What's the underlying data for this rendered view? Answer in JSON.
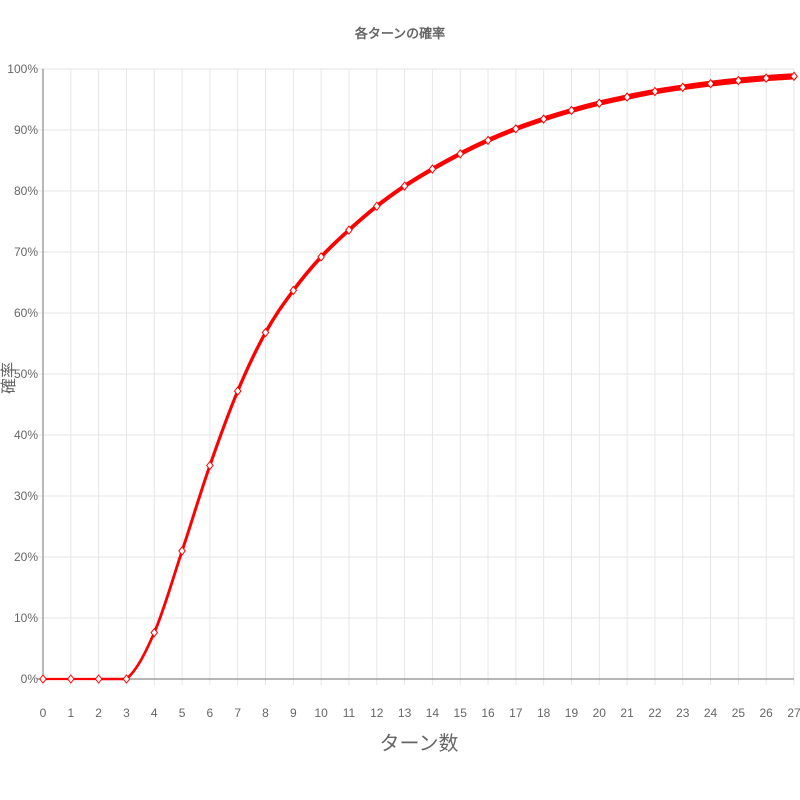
{
  "chart_data": {
    "type": "line",
    "title": "各ターンの確率",
    "xlabel": "ターン数",
    "ylabel": "確率",
    "x": [
      0,
      1,
      2,
      3,
      4,
      5,
      6,
      7,
      8,
      9,
      10,
      11,
      12,
      13,
      14,
      15,
      16,
      17,
      18,
      19,
      20,
      21,
      22,
      23,
      24,
      25,
      26,
      27
    ],
    "xlim": [
      0,
      27
    ],
    "ylim": [
      0,
      100
    ],
    "yticks": [
      "0%",
      "10%",
      "20%",
      "30%",
      "40%",
      "50%",
      "60%",
      "70%",
      "80%",
      "90%",
      "100%"
    ],
    "grid": true,
    "legend": "none",
    "series": [
      {
        "color": "#ff0000",
        "marker": "diamond",
        "values": [
          0,
          0,
          0,
          0,
          7.6,
          21.0,
          35.0,
          47.2,
          56.8,
          63.7,
          69.2,
          73.6,
          77.5,
          80.8,
          83.6,
          86.1,
          88.3,
          90.2,
          91.8,
          93.2,
          94.4,
          95.4,
          96.3,
          97.0,
          97.6,
          98.1,
          98.5,
          98.8
        ]
      }
    ]
  }
}
